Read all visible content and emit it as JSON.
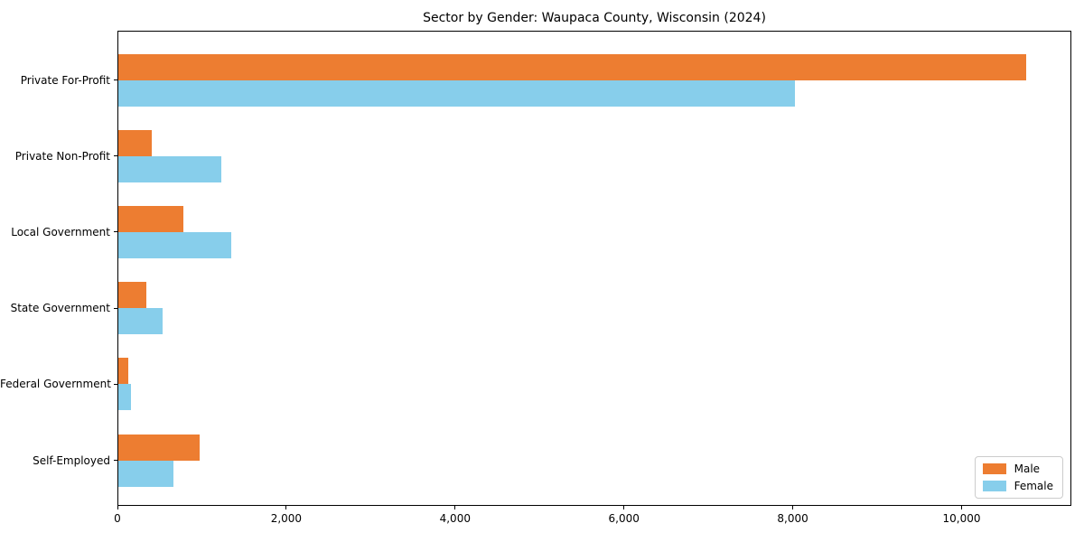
{
  "chart_data": {
    "type": "bar",
    "orientation": "horizontal",
    "title": "Sector by Gender: Waupaca County, Wisconsin (2024)",
    "categories": [
      "Private For-Profit",
      "Private Non-Profit",
      "Local Government",
      "State Government",
      "Federal Government",
      "Self-Employed"
    ],
    "series": [
      {
        "name": "Male",
        "color": "#ED7D31",
        "values": [
          10760,
          405,
          780,
          340,
          125,
          975
        ]
      },
      {
        "name": "Female",
        "color": "#87CEEB",
        "values": [
          8030,
          1230,
          1350,
          535,
          160,
          665
        ]
      }
    ],
    "xlabel": "",
    "ylabel": "",
    "xlim": [
      0,
      11300
    ],
    "xticks": [
      {
        "value": 0,
        "label": "0"
      },
      {
        "value": 2000,
        "label": "2,000"
      },
      {
        "value": 4000,
        "label": "4,000"
      },
      {
        "value": 6000,
        "label": "6,000"
      },
      {
        "value": 8000,
        "label": "8,000"
      },
      {
        "value": 10000,
        "label": "10,000"
      }
    ],
    "grid": false,
    "legend_position": "lower right"
  }
}
